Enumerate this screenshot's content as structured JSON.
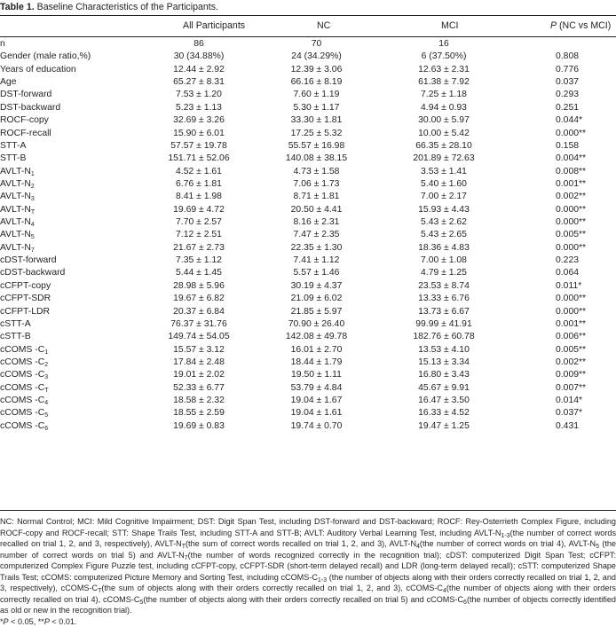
{
  "table": {
    "title_bold": "Table 1.",
    "title_text": "Baseline Characteristics of the Participants.",
    "headers": [
      "All Participants",
      "NC",
      "MCI",
      "P (NC vs MCI)"
    ],
    "rows": [
      {
        "label": "n",
        "sub": "",
        "all": "86",
        "nc": "70",
        "mci": "16",
        "p": ""
      },
      {
        "label": "Gender (male ratio,%)",
        "sub": "",
        "all": "30 (34.88%)",
        "nc": "24 (34.29%)",
        "mci": "6 (37.50%)",
        "p": "0.808"
      },
      {
        "label": "Years of education",
        "sub": "",
        "all": "12.44 ± 2.92",
        "nc": "12.39 ± 3.06",
        "mci": "12.63 ± 2.31",
        "p": "0.776"
      },
      {
        "label": "Age",
        "sub": "",
        "all": "65.27 ± 8.31",
        "nc": "66.16 ± 8.19",
        "mci": "61.38 ± 7.92",
        "p": "0.037"
      },
      {
        "label": "DST-forward",
        "sub": "",
        "all": "7.53 ± 1.20",
        "nc": "7.60 ± 1.19",
        "mci": "7.25 ± 1.18",
        "p": "0.293"
      },
      {
        "label": "DST-backward",
        "sub": "",
        "all": "5.23 ± 1.13",
        "nc": "5.30 ± 1.17",
        "mci": "4.94 ± 0.93",
        "p": "0.251"
      },
      {
        "label": "ROCF-copy",
        "sub": "",
        "all": "32.69 ± 3.26",
        "nc": "33.30 ± 1.81",
        "mci": "30.00 ± 5.97",
        "p": "0.044*"
      },
      {
        "label": "ROCF-recall",
        "sub": "",
        "all": "15.90 ± 6.01",
        "nc": "17.25 ± 5.32",
        "mci": "10.00 ± 5.42",
        "p": "0.000**"
      },
      {
        "label": "STT-A",
        "sub": "",
        "all": "57.57 ± 19.78",
        "nc": "55.57 ± 16.98",
        "mci": "66.35 ± 28.10",
        "p": "0.158"
      },
      {
        "label": "STT-B",
        "sub": "",
        "all": "151.71 ± 52.06",
        "nc": "140.08 ± 38.15",
        "mci": "201.89 ± 72.63",
        "p": "0.004**"
      },
      {
        "label": "AVLT-N",
        "sub": "1",
        "all": "4.52 ± 1.61",
        "nc": "4.73 ± 1.58",
        "mci": "3.53 ± 1.41",
        "p": "0.008**"
      },
      {
        "label": "AVLT-N",
        "sub": "2",
        "all": "6.76 ± 1.81",
        "nc": "7.06 ± 1.73",
        "mci": "5.40 ± 1.60",
        "p": "0.001**"
      },
      {
        "label": "AVLT-N",
        "sub": "3",
        "all": "8.41 ± 1.98",
        "nc": "8.71 ± 1.81",
        "mci": "7.00 ± 2.17",
        "p": "0.002**"
      },
      {
        "label": "AVLT-N",
        "sub": "T",
        "all": "19.69 ± 4.72",
        "nc": "20.50 ± 4.41",
        "mci": "15.93 ± 4.43",
        "p": "0.000**"
      },
      {
        "label": "AVLT-N",
        "sub": "4",
        "all": "7.70 ± 2.57",
        "nc": "8.16 ± 2.31",
        "mci": "5.43 ± 2.62",
        "p": "0.000**"
      },
      {
        "label": "AVLT-N",
        "sub": "5",
        "all": "7.12 ± 2.51",
        "nc": "7.47 ± 2.35",
        "mci": "5.43 ± 2.65",
        "p": "0.005**"
      },
      {
        "label": "AVLT-N",
        "sub": "7",
        "all": "21.67 ± 2.73",
        "nc": "22.35 ± 1.30",
        "mci": "18.36 ± 4.83",
        "p": "0.000**"
      },
      {
        "label": "cDST-forward",
        "sub": "",
        "all": "7.35 ± 1.12",
        "nc": "7.41 ± 1.12",
        "mci": "7.00 ± 1.08",
        "p": "0.223"
      },
      {
        "label": "cDST-backward",
        "sub": "",
        "all": "5.44 ± 1.45",
        "nc": "5.57 ± 1.46",
        "mci": "4.79 ± 1.25",
        "p": "0.064"
      },
      {
        "label": "cCFPT-copy",
        "sub": "",
        "all": "28.98 ± 5.96",
        "nc": "30.19 ± 4.37",
        "mci": "23.53 ± 8.74",
        "p": "0.011*"
      },
      {
        "label": "cCFPT-SDR",
        "sub": "",
        "all": "19.67 ± 6.82",
        "nc": "21.09 ± 6.02",
        "mci": "13.33 ± 6.76",
        "p": "0.000**"
      },
      {
        "label": "cCFPT-LDR",
        "sub": "",
        "all": "20.37 ± 6.84",
        "nc": "21.85 ± 5.97",
        "mci": "13.73 ± 6.67",
        "p": "0.000**"
      },
      {
        "label": "cSTT-A",
        "sub": "",
        "all": "76.37 ± 31.76",
        "nc": "70.90 ± 26.40",
        "mci": "99.99 ± 41.91",
        "p": "0.001**"
      },
      {
        "label": "cSTT-B",
        "sub": "",
        "all": "149.74 ± 54.05",
        "nc": "142.08 ± 49.78",
        "mci": "182.76 ± 60.78",
        "p": "0.006**"
      },
      {
        "label": "cCOMS -C",
        "sub": "1",
        "all": "15.57 ± 3.12",
        "nc": "16.01 ± 2.70",
        "mci": "13.53 ± 4.10",
        "p": "0.005**"
      },
      {
        "label": "cCOMS -C",
        "sub": "2",
        "all": "17.84 ± 2.48",
        "nc": "18.44 ± 1.79",
        "mci": "15.13 ± 3.34",
        "p": "0.002**"
      },
      {
        "label": "cCOMS -C",
        "sub": "3",
        "all": "19.01 ± 2.02",
        "nc": "19.50 ± 1.11",
        "mci": "16.80 ± 3.43",
        "p": "0.009**"
      },
      {
        "label": "cCOMS -C",
        "sub": "T",
        "all": "52.33 ± 6.77",
        "nc": "53.79 ± 4.84",
        "mci": "45.67 ± 9.91",
        "p": "0.007**"
      },
      {
        "label": "cCOMS -C",
        "sub": "4",
        "all": "18.58 ± 2.32",
        "nc": "19.04 ± 1.67",
        "mci": "16.47 ± 3.50",
        "p": "0.014*"
      },
      {
        "label": "cCOMS -C",
        "sub": "5",
        "all": "18.55 ± 2.59",
        "nc": "19.04 ± 1.61",
        "mci": "16.33 ± 4.52",
        "p": "0.037*"
      },
      {
        "label": "cCOMS -C",
        "sub": "6",
        "all": "19.69 ± 0.83",
        "nc": "19.74 ± 0.70",
        "mci": "19.47 ± 1.25",
        "p": "0.431"
      }
    ]
  },
  "footnotes": {
    "abbreviations": "NC: Normal Control; MCI: Mild Cognitive Impairment; DST: Digit Span Test, including DST-forward and DST-backward; ROCF: Rey-Osterrieth Complex Figure, including ROCF-copy and ROCF-recall; STT: Shape Trails Test, including STT-A and STT-B; AVLT: Auditory Verbal Learning Test, including AVLT-N1-3(the number of correct words recalled on trial 1, 2, and 3, respectively), AVLT-NT(the sum of correct words recalled on trial 1, 2, and 3), AVLT-N4(the number of correct words on trial 4), AVLT-N5 (the number of correct words on trial 5) and AVLT-N7(the number of words recognized correctly in the recognition trial); cDST: computerized Digit Span Test; cCFPT: computerized Complex Figure Puzzle test, including cCFPT-copy, cCFPT-SDR (short-term delayed recall) and LDR (long-term delayed recall); cSTT: computerized Shape Trails Test; cCOMS: computerized Picture Memory and Sorting Test, including cCOMS-C1-3 (the number of objects along with their orders correctly recalled on trial 1, 2, and 3, respectively), cCOMS-CT(the sum of objects along with their orders correctly recalled on trial 1, 2, and 3), cCOMS-C4(the number of objects along with their orders correctly recalled on trial 4), cCOMS-C5(the number of objects along with their orders correctly recalled on trial 5) and cCOMS-C6(the number of objects correctly identified as old or new in the recognition trial).",
    "significance": "*P < 0.05, **P < 0.01."
  }
}
